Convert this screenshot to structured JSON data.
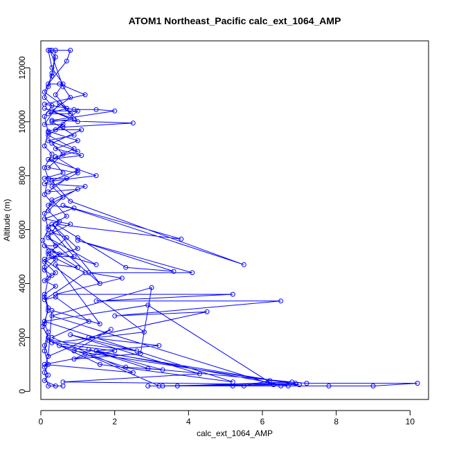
{
  "chart_data": {
    "type": "line",
    "title": "ATOM1 Northeast_Pacific calc_ext_1064_AMP",
    "xlabel": "calc_ext_1064_AMP",
    "ylabel": "Altitude (m)",
    "xlim": [
      0,
      10.5
    ],
    "ylim": [
      -300,
      13000
    ],
    "x_ticks": [
      0,
      2,
      4,
      6,
      8,
      10
    ],
    "y_ticks": [
      0,
      2000,
      4000,
      6000,
      8000,
      10000,
      12000
    ],
    "grid": false,
    "legend": "none",
    "series_color": "#0000ff",
    "series": [
      {
        "points": [
          [
            0.3,
            12650
          ],
          [
            0.8,
            12650
          ],
          [
            0.7,
            12250
          ],
          [
            0.2,
            11400
          ],
          [
            0.5,
            11400
          ],
          [
            1.2,
            11000
          ],
          [
            0.1,
            10650
          ],
          [
            0.9,
            10450
          ],
          [
            1.5,
            10450
          ],
          [
            2.0,
            10400
          ],
          [
            0.3,
            10050
          ],
          [
            2.5,
            9950
          ],
          [
            0.6,
            9800
          ],
          [
            0.2,
            9650
          ],
          [
            1.0,
            9300
          ],
          [
            0.4,
            9000
          ],
          [
            1.1,
            8750
          ],
          [
            0.2,
            8600
          ],
          [
            1.5,
            8000
          ],
          [
            0.3,
            7800
          ],
          [
            0.8,
            7050
          ],
          [
            5.5,
            4700
          ],
          [
            0.6,
            6900
          ],
          [
            3.8,
            5650
          ],
          [
            0.4,
            6200
          ],
          [
            1.0,
            5700
          ],
          [
            2.3,
            4600
          ],
          [
            3.6,
            4450
          ],
          [
            1.0,
            5600
          ],
          [
            4.1,
            4400
          ],
          [
            1.3,
            4400
          ],
          [
            2.2,
            4200
          ],
          [
            0.4,
            3600
          ],
          [
            5.2,
            3600
          ],
          [
            1.5,
            3350
          ],
          [
            6.5,
            3350
          ],
          [
            2.0,
            2800
          ],
          [
            4.5,
            2950
          ],
          [
            1.3,
            2000
          ],
          [
            3.2,
            1700
          ],
          [
            1.5,
            1500
          ],
          [
            6.7,
            200
          ],
          [
            5.5,
            200
          ],
          [
            6.2,
            400
          ],
          [
            7.2,
            300
          ],
          [
            10.2,
            300
          ],
          [
            9.0,
            200
          ],
          [
            6.5,
            200
          ],
          [
            7.8,
            200
          ],
          [
            2.9,
            200
          ],
          [
            3.3,
            200
          ],
          [
            6.9,
            300
          ],
          [
            5.2,
            200
          ],
          [
            3.7,
            200
          ],
          [
            6.8,
            350
          ],
          [
            2.9,
            850
          ],
          [
            1.3,
            1550
          ],
          [
            3.3,
            800
          ],
          [
            2.3,
            900
          ],
          [
            0.5,
            1700
          ],
          [
            7.0,
            250
          ],
          [
            3.2,
            200
          ],
          [
            1.2,
            1400
          ],
          [
            0.9,
            1200
          ],
          [
            2.7,
            1400
          ],
          [
            3.0,
            3850
          ],
          [
            0.3,
            2800
          ],
          [
            6.3,
            250
          ],
          [
            2.9,
            3200
          ],
          [
            0.1,
            2600
          ],
          [
            5.2,
            350
          ],
          [
            1.6,
            1000
          ],
          [
            0.2,
            1900
          ],
          [
            2.6,
            1500
          ],
          [
            0.8,
            2100
          ],
          [
            4.3,
            650
          ],
          [
            0.6,
            350
          ],
          [
            7.0,
            250
          ],
          [
            0.9,
            1500
          ],
          [
            1.9,
            2300
          ],
          [
            0.2,
            1300
          ],
          [
            0.3,
            3000
          ],
          [
            1.6,
            2500
          ],
          [
            0.4,
            4700
          ],
          [
            1.0,
            4600
          ],
          [
            0.3,
            5200
          ],
          [
            1.5,
            4700
          ],
          [
            0.2,
            5700
          ],
          [
            1.6,
            4000
          ],
          [
            0.3,
            6200
          ],
          [
            1.0,
            5300
          ],
          [
            0.1,
            4900
          ],
          [
            2.8,
            2200
          ],
          [
            0.3,
            1800
          ],
          [
            2.0,
            1500
          ],
          [
            0.1,
            1000
          ],
          [
            2.5,
            700
          ],
          [
            0.3,
            2000
          ],
          [
            1.3,
            2600
          ],
          [
            0.4,
            3500
          ],
          [
            0.1,
            3400
          ],
          [
            1.2,
            4400
          ],
          [
            0.3,
            5000
          ],
          [
            0.9,
            5000
          ],
          [
            0.2,
            6100
          ],
          [
            0.7,
            6500
          ],
          [
            0.3,
            7100
          ],
          [
            1.2,
            7600
          ],
          [
            0.1,
            7700
          ],
          [
            1.0,
            8200
          ],
          [
            0.4,
            8700
          ],
          [
            1.0,
            8900
          ],
          [
            0.2,
            9300
          ],
          [
            0.9,
            9500
          ],
          [
            0.3,
            10000
          ],
          [
            0.9,
            10100
          ],
          [
            0.1,
            10500
          ],
          [
            1.0,
            10000
          ],
          [
            0.4,
            11000
          ],
          [
            0.6,
            11400
          ],
          [
            0.3,
            12000
          ],
          [
            0.2,
            12650
          ],
          [
            0.4,
            12650
          ],
          [
            0.3,
            11700
          ],
          [
            0.1,
            11100
          ],
          [
            0.7,
            10500
          ],
          [
            0.2,
            10300
          ],
          [
            0.8,
            10300
          ],
          [
            0.5,
            10700
          ],
          [
            0.1,
            9900
          ],
          [
            0.6,
            9900
          ],
          [
            0.2,
            9500
          ],
          [
            0.9,
            9000
          ],
          [
            0.3,
            8600
          ],
          [
            0.6,
            8100
          ],
          [
            0.1,
            7900
          ],
          [
            0.7,
            7900
          ],
          [
            0.2,
            7400
          ],
          [
            1.0,
            7500
          ],
          [
            0.2,
            6900
          ],
          [
            0.9,
            6800
          ],
          [
            0.1,
            6400
          ],
          [
            0.8,
            6200
          ],
          [
            0.2,
            5800
          ],
          [
            0.4,
            5400
          ],
          [
            0.1,
            5400
          ],
          [
            0.5,
            5100
          ],
          [
            0.1,
            4800
          ],
          [
            0.4,
            4400
          ],
          [
            0.1,
            4100
          ],
          [
            0.4,
            3900
          ],
          [
            0.1,
            3600
          ],
          [
            0.2,
            3100
          ],
          [
            0.1,
            2500
          ],
          [
            0.2,
            2200
          ],
          [
            0.1,
            1700
          ],
          [
            0.2,
            1300
          ],
          [
            0.1,
            900
          ],
          [
            0.2,
            600
          ],
          [
            0.1,
            400
          ],
          [
            0.4,
            200
          ],
          [
            0.6,
            200
          ],
          [
            0.2,
            200
          ],
          [
            0.1,
            700
          ],
          [
            0.2,
            1000
          ],
          [
            0.1,
            1500
          ],
          [
            0.2,
            2000
          ],
          [
            0.05,
            2400
          ],
          [
            0.2,
            3000
          ],
          [
            0.1,
            3500
          ],
          [
            0.2,
            4200
          ],
          [
            0.1,
            4600
          ],
          [
            0.2,
            5200
          ],
          [
            0.05,
            5600
          ],
          [
            0.2,
            6000
          ],
          [
            0.1,
            6600
          ],
          [
            0.3,
            7000
          ],
          [
            0.1,
            7300
          ],
          [
            0.2,
            7900
          ],
          [
            0.1,
            8300
          ],
          [
            0.3,
            8800
          ],
          [
            0.1,
            9100
          ],
          [
            0.2,
            9600
          ],
          [
            0.1,
            10200
          ],
          [
            0.3,
            10600
          ],
          [
            0.1,
            10900
          ],
          [
            0.2,
            11300
          ],
          [
            0.3,
            11800
          ],
          [
            0.4,
            12400
          ],
          [
            0.25,
            12650
          ],
          [
            0.6,
            11300
          ],
          [
            0.8,
            10900
          ],
          [
            0.3,
            10400
          ],
          [
            1.0,
            10400
          ],
          [
            0.4,
            9700
          ],
          [
            1.1,
            9700
          ],
          [
            0.3,
            9200
          ],
          [
            0.6,
            8800
          ],
          [
            0.2,
            8300
          ],
          [
            1.0,
            8100
          ],
          [
            0.3,
            7600
          ],
          [
            0.6,
            7200
          ],
          [
            0.2,
            6700
          ],
          [
            0.5,
            6300
          ],
          [
            0.3,
            5900
          ],
          [
            0.7,
            5700
          ],
          [
            0.2,
            5100
          ],
          [
            0.4,
            4900
          ],
          [
            0.1,
            4500
          ],
          [
            0.3,
            4300
          ]
        ]
      }
    ]
  }
}
